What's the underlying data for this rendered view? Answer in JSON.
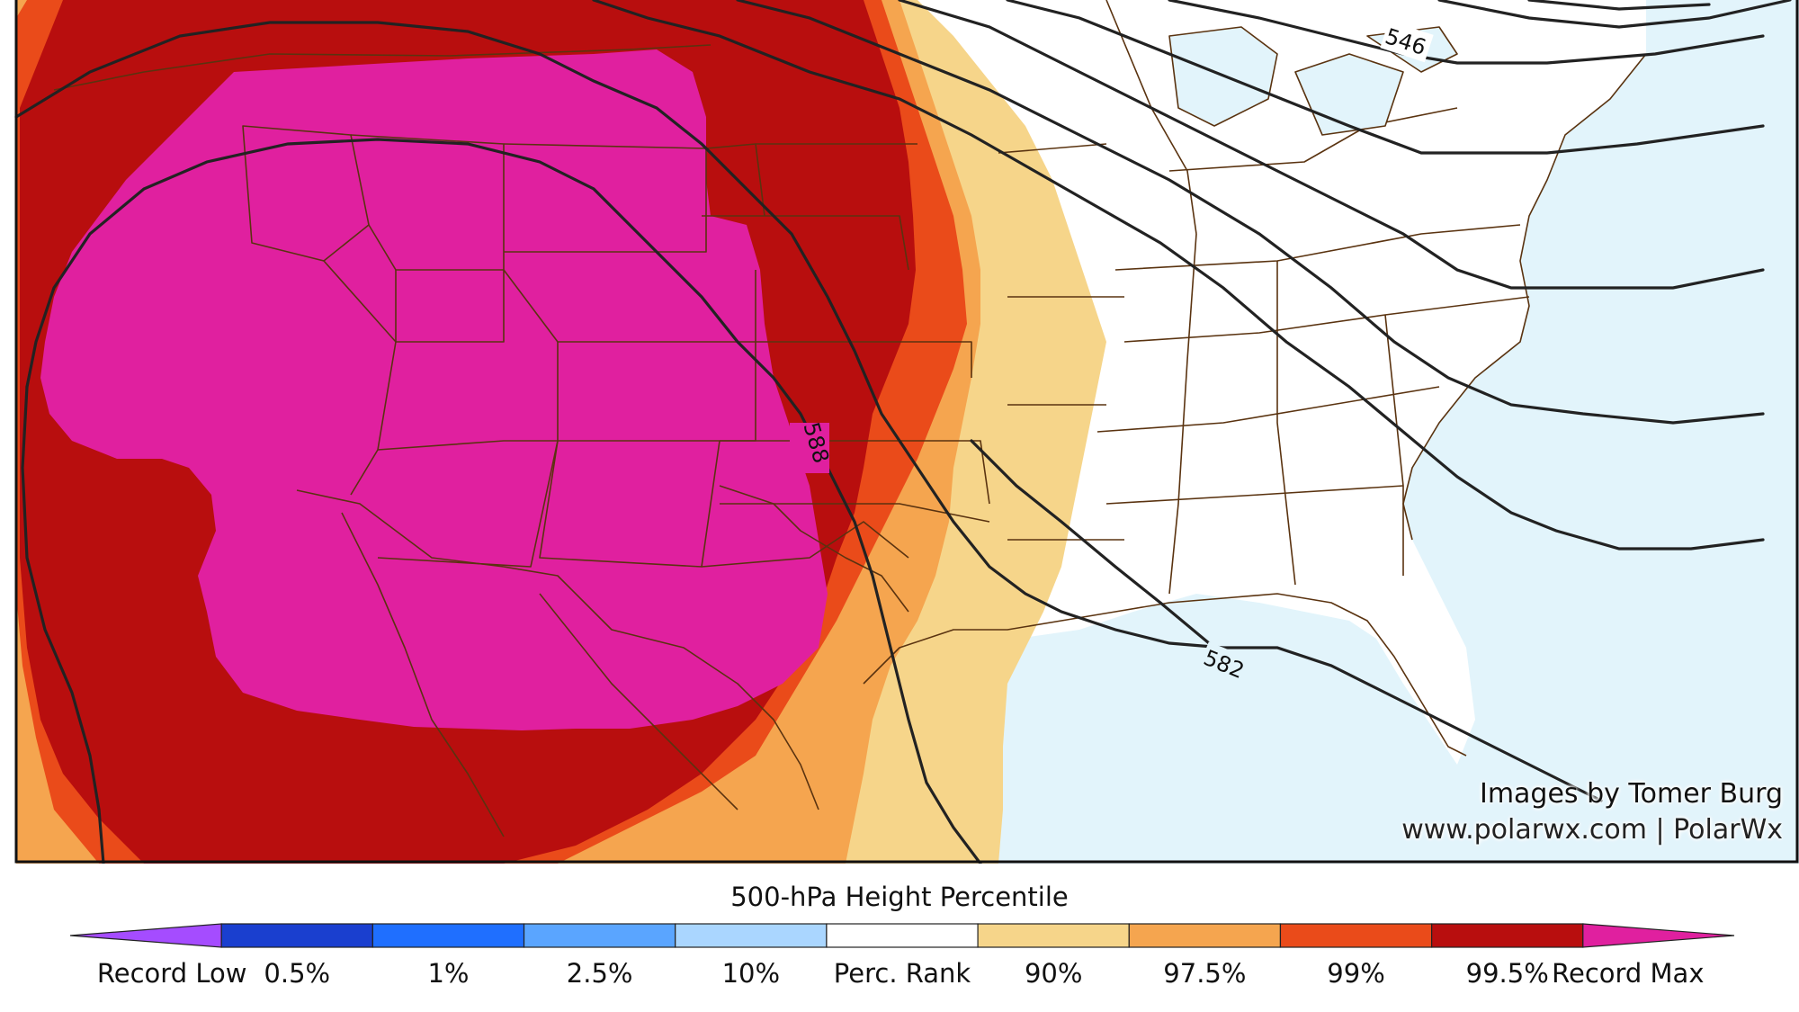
{
  "map": {
    "contours": [
      {
        "label": "546"
      },
      {
        "label": "588"
      },
      {
        "label": "582"
      }
    ]
  },
  "credits": {
    "line1": "Images by Tomer Burg",
    "line2": "www.polarwx.com | PolarWx"
  },
  "colorbar": {
    "title": "500-hPa Height Percentile",
    "colors": [
      "#a54cff",
      "#1a3fcf",
      "#1f6fff",
      "#5aa5ff",
      "#aad6ff",
      "#ffffff",
      "#f6d58a",
      "#f5a54f",
      "#ea4b1a",
      "#b80e0e",
      "#e0209f"
    ],
    "labels": [
      "Record Low",
      "0.5%",
      "1%",
      "2.5%",
      "10%",
      "Perc. Rank",
      "90%",
      "97.5%",
      "99%",
      "99.5%",
      "Record Max"
    ]
  },
  "palette": {
    "ocean": "#e2f4fb",
    "land": "#ffffff",
    "p90": "#f6d58a",
    "p975": "#f5a54f",
    "p99": "#ea4b1a",
    "p995": "#b80e0e",
    "record_max": "#e0209f",
    "border": "#5a3310",
    "contour": "#222222"
  }
}
